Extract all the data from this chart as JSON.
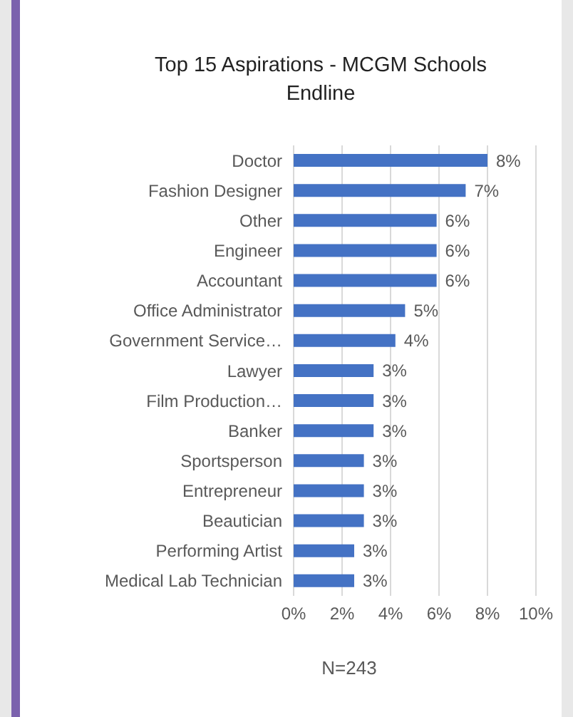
{
  "chart_data": {
    "type": "bar",
    "orientation": "horizontal",
    "title": "Top 15 Aspirations - MCGM Schools Endline",
    "categories": [
      "Doctor",
      "Fashion Designer",
      "Other",
      "Engineer",
      "Accountant",
      "Office Administrator",
      "Government Service…",
      "Lawyer",
      "Film Production…",
      "Banker",
      "Sportsperson",
      "Entrepreneur",
      "Beautician",
      "Performing Artist",
      "Medical Lab Technician"
    ],
    "values": [
      8.0,
      7.1,
      5.9,
      5.9,
      5.9,
      4.6,
      4.2,
      3.3,
      3.3,
      3.3,
      2.9,
      2.9,
      2.9,
      2.5,
      2.5
    ],
    "value_labels": [
      "8%",
      "7%",
      "6%",
      "6%",
      "6%",
      "5%",
      "4%",
      "3%",
      "3%",
      "3%",
      "3%",
      "3%",
      "3%",
      "3%",
      "3%"
    ],
    "color": "#4472c4",
    "xlim": [
      0,
      10
    ],
    "xticks": [
      {
        "value": 0,
        "label": "0%"
      },
      {
        "value": 2,
        "label": "2%"
      },
      {
        "value": 4,
        "label": "4%"
      },
      {
        "value": 6,
        "label": "6%"
      },
      {
        "value": 8,
        "label": "8%"
      },
      {
        "value": 10,
        "label": "10%"
      }
    ],
    "grid": "x",
    "annotations": [
      "N=243"
    ]
  }
}
